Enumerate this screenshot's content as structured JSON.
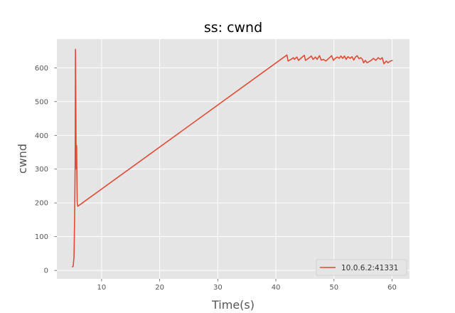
{
  "chart_data": {
    "type": "line",
    "title": "ss: cwnd",
    "xlabel": "Time(s)",
    "ylabel": "cwnd",
    "xlim": [
      2.3,
      63.0
    ],
    "ylim": [
      -25,
      685
    ],
    "xticks": [
      10,
      20,
      30,
      40,
      50,
      60
    ],
    "yticks": [
      0,
      100,
      200,
      300,
      400,
      500,
      600
    ],
    "grid": true,
    "legend_position": "lower-right",
    "colors": {
      "background": "#e5e5e5",
      "grid": "#ffffff",
      "line": "#e24a33"
    },
    "series": [
      {
        "name": "10.0.6.2:41331",
        "color": "#e24a33",
        "points": [
          [
            4.9,
            10
          ],
          [
            5.1,
            12
          ],
          [
            5.25,
            40
          ],
          [
            5.35,
            150
          ],
          [
            5.45,
            320
          ],
          [
            5.5,
            655
          ],
          [
            5.55,
            540
          ],
          [
            5.6,
            380
          ],
          [
            5.65,
            300
          ],
          [
            5.7,
            370
          ],
          [
            5.75,
            280
          ],
          [
            5.8,
            200
          ],
          [
            5.9,
            190
          ],
          [
            41.9,
            638
          ],
          [
            42.1,
            620
          ],
          [
            42.6,
            625
          ],
          [
            43.0,
            630
          ],
          [
            43.2,
            625
          ],
          [
            43.6,
            632
          ],
          [
            43.9,
            622
          ],
          [
            44.4,
            630
          ],
          [
            44.9,
            637
          ],
          [
            45.1,
            622
          ],
          [
            45.6,
            628
          ],
          [
            46.1,
            635
          ],
          [
            46.4,
            625
          ],
          [
            46.8,
            632
          ],
          [
            47.1,
            625
          ],
          [
            47.5,
            636
          ],
          [
            47.8,
            623
          ],
          [
            48.2,
            625
          ],
          [
            48.6,
            620
          ],
          [
            49.1,
            628
          ],
          [
            49.6,
            636
          ],
          [
            49.9,
            622
          ],
          [
            50.2,
            628
          ],
          [
            50.6,
            632
          ],
          [
            50.9,
            628
          ],
          [
            51.2,
            635
          ],
          [
            51.5,
            628
          ],
          [
            51.8,
            635
          ],
          [
            52.1,
            625
          ],
          [
            52.4,
            633
          ],
          [
            52.8,
            628
          ],
          [
            53.1,
            633
          ],
          [
            53.4,
            623
          ],
          [
            53.7,
            632
          ],
          [
            54.0,
            636
          ],
          [
            54.3,
            627
          ],
          [
            54.6,
            630
          ],
          [
            54.9,
            625
          ],
          [
            55.1,
            615
          ],
          [
            55.4,
            622
          ],
          [
            55.7,
            615
          ],
          [
            56.0,
            618
          ],
          [
            56.4,
            622
          ],
          [
            56.8,
            628
          ],
          [
            57.2,
            622
          ],
          [
            57.6,
            630
          ],
          [
            58.0,
            625
          ],
          [
            58.3,
            630
          ],
          [
            58.6,
            612
          ],
          [
            59.0,
            620
          ],
          [
            59.3,
            615
          ],
          [
            59.7,
            620
          ],
          [
            60.1,
            622
          ]
        ]
      }
    ]
  }
}
